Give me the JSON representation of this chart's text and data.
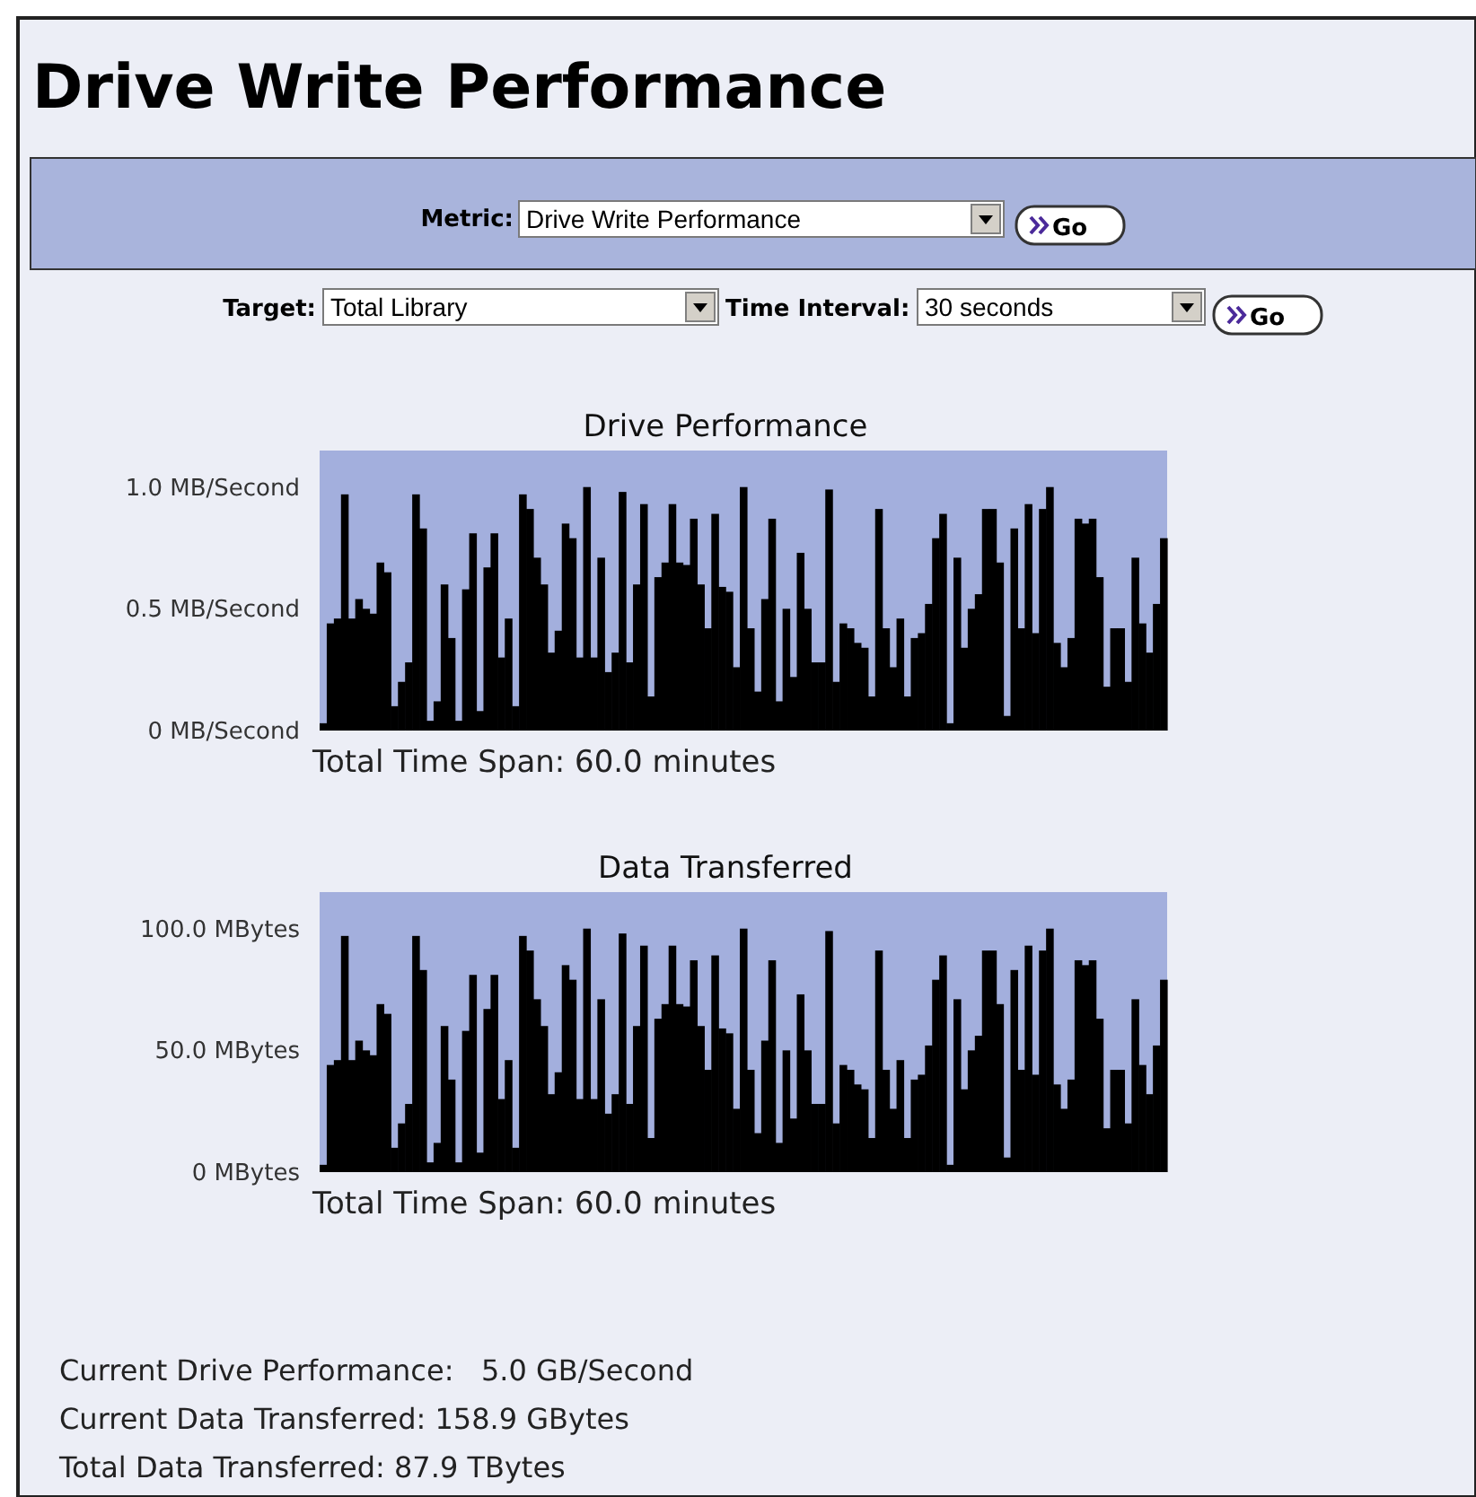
{
  "chart_data": [
    {
      "type": "other",
      "title": "Drive Write Performance",
      "annotations": [
        "Metric:",
        "Drive Write Performance",
        "Go",
        "Target:",
        "Total Library",
        "Time Interval:",
        "30 seconds",
        "Go"
      ]
    },
    {
      "type": "bar",
      "title": "Drive Performance",
      "xlabel": "Total Time Span: 60.0 minutes",
      "color": "#000000",
      "categories": [
        null,
        null,
        null,
        null,
        null,
        null,
        null,
        null,
        null,
        null,
        null,
        null,
        null,
        null,
        null,
        null,
        null,
        null,
        null,
        null,
        null,
        null,
        null,
        null,
        null,
        null,
        null,
        null,
        null,
        null,
        null,
        null,
        null,
        null,
        null,
        null,
        null,
        null,
        null,
        null,
        null,
        null,
        null,
        null,
        null,
        null,
        null,
        null,
        null,
        null,
        null,
        null,
        null,
        null,
        null,
        null,
        null,
        null,
        null,
        null,
        null,
        null,
        null,
        null,
        null,
        null,
        null,
        null,
        null,
        null,
        null,
        null,
        null,
        null,
        null,
        null,
        null,
        null,
        null,
        null,
        null,
        null,
        null,
        null,
        null,
        null,
        null,
        null,
        null,
        null,
        null,
        null,
        null,
        null,
        null,
        null,
        null,
        null,
        null,
        null,
        null,
        null,
        null,
        null,
        null,
        null,
        null,
        null,
        null,
        null,
        null,
        null,
        null,
        null,
        null,
        null,
        null,
        null,
        null
      ],
      "values": [
        0.03,
        0.44,
        0.46,
        0.97,
        0.46,
        0.54,
        0.5,
        0.48,
        0.69,
        0.65,
        0.1,
        0.2,
        0.28,
        0.97,
        0.83,
        0.04,
        0.12,
        0.6,
        0.38,
        0.04,
        0.58,
        0.81,
        0.08,
        0.67,
        0.81,
        0.3,
        0.46,
        0.1,
        0.97,
        0.91,
        0.71,
        0.6,
        0.32,
        0.41,
        0.85,
        0.79,
        0.3,
        1.0,
        0.3,
        0.71,
        0.24,
        0.32,
        0.98,
        0.28,
        0.6,
        0.93,
        0.14,
        0.63,
        0.69,
        0.93,
        0.69,
        0.68,
        0.87,
        0.6,
        0.42,
        0.89,
        0.59,
        0.57,
        0.26,
        1.0,
        0.42,
        0.16,
        0.54,
        0.87,
        0.12,
        0.5,
        0.22,
        0.73,
        0.5,
        0.28,
        0.28,
        0.99,
        0.2,
        0.44,
        0.42,
        0.36,
        0.34,
        0.14,
        0.91,
        0.42,
        0.26,
        0.46,
        0.14,
        0.38,
        0.4,
        0.52,
        0.79,
        0.89,
        0.03,
        0.71,
        0.34,
        0.5,
        0.56,
        0.91,
        0.91,
        0.69,
        0.06,
        0.83,
        0.42,
        0.93,
        0.4,
        0.91,
        1.0,
        0.36,
        0.26,
        0.38,
        0.87,
        0.85,
        0.87,
        0.63,
        0.18,
        0.42,
        0.42,
        0.2,
        0.71,
        0.44,
        0.32,
        0.52,
        0.79
      ],
      "ylim": [
        0,
        1.15
      ],
      "yticks": [
        {
          "value": 0,
          "label": "0 MB/Second"
        },
        {
          "value": 0.5,
          "label": "0.5 MB/Second"
        },
        {
          "value": 1.0,
          "label": "1.0 MB/Second"
        }
      ],
      "grid": false
    },
    {
      "type": "bar",
      "title": "Data Transferred",
      "xlabel": "Total Time Span: 60.0 minutes",
      "color": "#000000",
      "categories": [
        null,
        null,
        null,
        null,
        null,
        null,
        null,
        null,
        null,
        null,
        null,
        null,
        null,
        null,
        null,
        null,
        null,
        null,
        null,
        null,
        null,
        null,
        null,
        null,
        null,
        null,
        null,
        null,
        null,
        null,
        null,
        null,
        null,
        null,
        null,
        null,
        null,
        null,
        null,
        null,
        null,
        null,
        null,
        null,
        null,
        null,
        null,
        null,
        null,
        null,
        null,
        null,
        null,
        null,
        null,
        null,
        null,
        null,
        null,
        null,
        null,
        null,
        null,
        null,
        null,
        null,
        null,
        null,
        null,
        null,
        null,
        null,
        null,
        null,
        null,
        null,
        null,
        null,
        null,
        null,
        null,
        null,
        null,
        null,
        null,
        null,
        null,
        null,
        null,
        null,
        null,
        null,
        null,
        null,
        null,
        null,
        null,
        null,
        null,
        null,
        null,
        null,
        null,
        null,
        null,
        null,
        null,
        null,
        null,
        null,
        null,
        null,
        null,
        null,
        null,
        null,
        null,
        null,
        null
      ],
      "values": [
        3,
        44,
        46,
        97,
        46,
        54,
        50,
        48,
        69,
        65,
        10,
        20,
        28,
        97,
        83,
        4,
        12,
        60,
        38,
        4,
        58,
        81,
        8,
        67,
        81,
        30,
        46,
        10,
        97,
        91,
        71,
        60,
        32,
        41,
        85,
        79,
        30,
        100,
        30,
        71,
        24,
        32,
        98,
        28,
        60,
        93,
        14,
        63,
        69,
        93,
        69,
        68,
        87,
        60,
        42,
        89,
        59,
        57,
        26,
        100,
        42,
        16,
        54,
        87,
        12,
        50,
        22,
        73,
        50,
        28,
        28,
        99,
        20,
        44,
        42,
        36,
        34,
        14,
        91,
        42,
        26,
        46,
        14,
        38,
        40,
        52,
        79,
        89,
        3,
        71,
        34,
        50,
        56,
        91,
        91,
        69,
        6,
        83,
        42,
        93,
        40,
        91,
        100,
        36,
        26,
        38,
        87,
        85,
        87,
        63,
        18,
        42,
        42,
        20,
        71,
        44,
        32,
        52,
        79
      ],
      "ylim": [
        0,
        115
      ],
      "yticks": [
        {
          "value": 0,
          "label": "0 MBytes"
        },
        {
          "value": 50,
          "label": "50.0 MBytes"
        },
        {
          "value": 100,
          "label": "100.0 MBytes"
        }
      ],
      "grid": false
    },
    {
      "type": "other",
      "annotations": [
        "Current Drive Performance:   5.0 GB/Second",
        "Current Data Transferred: 158.9 GBytes",
        "Total Data Transferred: 87.9 TBytes"
      ]
    }
  ]
}
